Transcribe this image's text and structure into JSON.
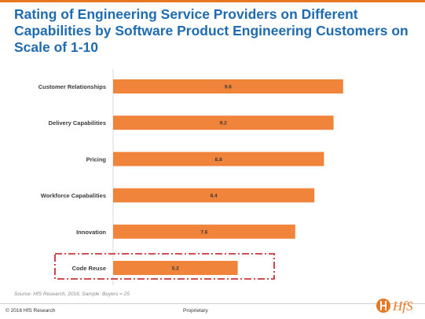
{
  "slide": {
    "title": "Rating of Engineering Service Providers on Different Capabilities by Software Product Engineering Customers on Scale of 1-10",
    "source": "Source: HfS Research, 2016; Sample: Buyers = 25",
    "copyright": "© 2016 HfS Research",
    "proprietary": "Proprietary",
    "logo_text": "HfS",
    "colors": {
      "title": "#1f6bb0",
      "accent_rule": "#e87722",
      "bar": "#f0843a",
      "highlight_box": "#c0171c",
      "logo": "#e87722"
    }
  },
  "chart_data": {
    "type": "bar",
    "orientation": "horizontal",
    "title": "",
    "xlabel": "",
    "ylabel": "",
    "categories": [
      "Customer Relationships",
      "Delivery Capabilities",
      "Pricing",
      "Workforce Capabalities",
      "Innovation",
      "Code Reuse"
    ],
    "values": [
      9.6,
      9.2,
      8.8,
      8.4,
      7.6,
      5.2
    ],
    "value_labels": [
      "9.6",
      "9.2",
      "8.8",
      "8.4",
      "7.6",
      "5.2"
    ],
    "xlim": [
      0,
      10
    ],
    "grid": false,
    "legend": "none",
    "highlighted_category": "Code Reuse"
  }
}
